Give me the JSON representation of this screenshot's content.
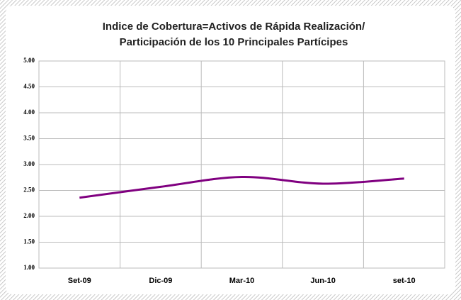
{
  "chart_data": {
    "type": "line",
    "title": [
      "Indice de Cobertura=Activos de Rápida Realización/",
      "Participación de los 10 Principales Partícipes"
    ],
    "categories": [
      "Set-09",
      "Dic-09",
      "Mar-10",
      "Jun-10",
      "set-10"
    ],
    "values": [
      2.36,
      2.57,
      2.76,
      2.63,
      2.73
    ],
    "color": "#800080",
    "ylim": [
      1,
      5
    ],
    "yticks": [
      {
        "value": 1,
        "label": "1.00"
      },
      {
        "value": 1.5,
        "label": "1.50"
      },
      {
        "value": 2,
        "label": "2.00"
      },
      {
        "value": 2.5,
        "label": "2.50"
      },
      {
        "value": 3,
        "label": "3.00"
      },
      {
        "value": 3.5,
        "label": "3.50"
      },
      {
        "value": 4,
        "label": "4.00"
      },
      {
        "value": 4.5,
        "label": "4.50"
      },
      {
        "value": 5,
        "label": "5.00"
      }
    ],
    "grid": true,
    "smooth": true
  }
}
